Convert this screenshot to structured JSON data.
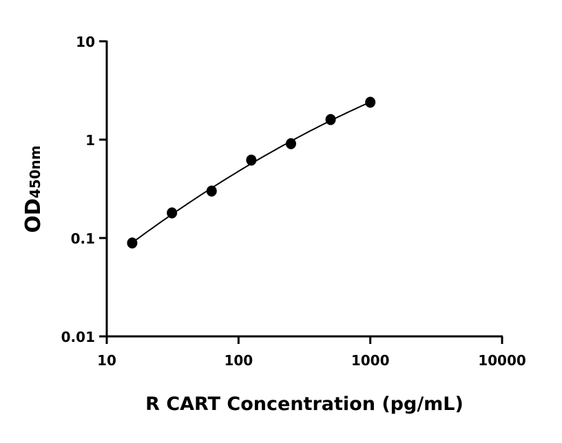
{
  "chart_data": {
    "type": "scatter",
    "title": "",
    "xlabel": "R CART Concentration (pg/mL)",
    "ylabel_main": "OD",
    "ylabel_sub": "450nm",
    "x_scale": "log",
    "y_scale": "log",
    "xlim": [
      10,
      10000
    ],
    "ylim": [
      0.01,
      10
    ],
    "x_ticks": [
      10,
      100,
      1000,
      10000
    ],
    "x_tick_labels": [
      "10",
      "100",
      "1000",
      "10000"
    ],
    "y_ticks": [
      0.01,
      0.1,
      1,
      10
    ],
    "y_tick_labels": [
      "0.01",
      "0.1",
      "1",
      "10"
    ],
    "grid": false,
    "fit_curve": true,
    "series": [
      {
        "x": [
          15.6,
          31.25,
          62.5,
          125,
          250,
          500,
          1000
        ],
        "y": [
          0.089,
          0.18,
          0.3,
          0.62,
          0.91,
          1.6,
          2.4
        ]
      }
    ],
    "colors": {
      "marker": "#000000",
      "line": "#000000"
    }
  }
}
